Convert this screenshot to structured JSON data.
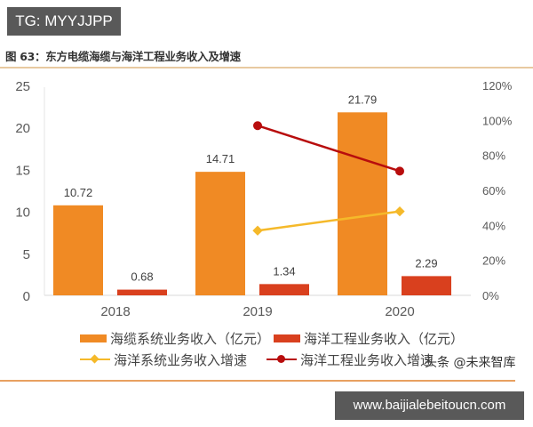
{
  "badge_top": "TG: MYYJJPP",
  "figure_title": "图 63：东方电缆海缆与海洋工程业务收入及增速",
  "watermark": "头条 @未来智库",
  "badge_bottom": "www.baijialebeitoucn.com",
  "colors": {
    "cable_bar": "#f08a24",
    "engineering_bar": "#d9401e",
    "cable_growth_line": "#f5b92a",
    "engineering_growth_line": "#b80d0d",
    "axis_text": "#595959"
  },
  "legend": [
    {
      "label": "海缆系统业务收入（亿元）",
      "type": "bar",
      "color": "#f08a24"
    },
    {
      "label": "海洋工程业务收入（亿元）",
      "type": "bar",
      "color": "#d9401e"
    },
    {
      "label": "海洋系统业务收入增速",
      "type": "line",
      "color": "#f5b92a",
      "marker": "diamond"
    },
    {
      "label": "海洋工程业务收入增速",
      "type": "line",
      "color": "#b80d0d",
      "marker": "circle"
    }
  ],
  "chart_data": {
    "type": "bar",
    "title": "图 63：东方电缆海缆与海洋工程业务收入及增速",
    "categories": [
      "2018",
      "2019",
      "2020"
    ],
    "series": [
      {
        "name": "海缆系统业务收入（亿元）",
        "type": "bar",
        "axis": "left",
        "values": [
          10.72,
          14.71,
          21.79
        ],
        "labels": [
          "10.72",
          "14.71",
          "21.79"
        ]
      },
      {
        "name": "海洋工程业务收入（亿元）",
        "type": "bar",
        "axis": "left",
        "values": [
          0.68,
          1.34,
          2.29
        ],
        "labels": [
          "0.68",
          "1.34",
          "2.29"
        ]
      },
      {
        "name": "海洋系统业务收入增速",
        "type": "line",
        "axis": "right",
        "values": [
          null,
          0.37,
          0.48
        ]
      },
      {
        "name": "海洋工程业务收入增速",
        "type": "line",
        "axis": "right",
        "values": [
          null,
          0.97,
          0.71
        ]
      }
    ],
    "left_axis": {
      "ylim": [
        0,
        25
      ],
      "ticks": [
        "0",
        "5",
        "10",
        "15",
        "20",
        "25"
      ]
    },
    "right_axis": {
      "ylim": [
        0,
        1.2
      ],
      "ticks": [
        "0%",
        "20%",
        "40%",
        "60%",
        "80%",
        "100%",
        "120%"
      ]
    },
    "xlabel": "",
    "ylabel": "",
    "grid": false,
    "legend_position": "bottom"
  }
}
